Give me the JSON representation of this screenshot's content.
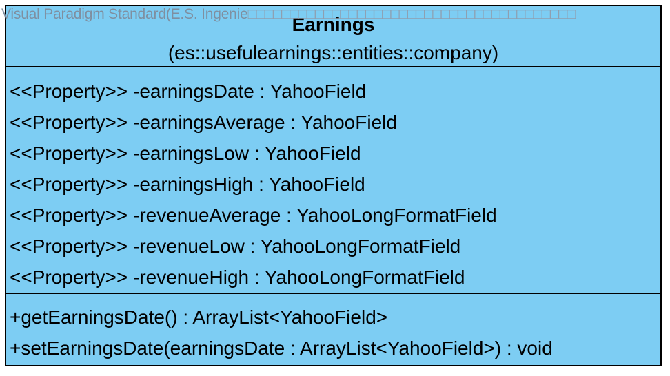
{
  "watermark": {
    "text": "Visual Paradigm Standard(E.S. Ingenie",
    "boxes": "□□□□□□□□□□□□□□□□□□□□□□□□□□□□□□□□□□□□□□□"
  },
  "class": {
    "name": "Earnings",
    "package": "(es::usefulearnings::entities::company)",
    "attributes": [
      "<<Property>> -earningsDate : YahooField",
      "<<Property>> -earningsAverage : YahooField",
      "<<Property>> -earningsLow : YahooField",
      "<<Property>> -earningsHigh : YahooField",
      "<<Property>> -revenueAverage : YahooLongFormatField",
      "<<Property>> -revenueLow : YahooLongFormatField",
      "<<Property>> -revenueHigh : YahooLongFormatField"
    ],
    "operations": [
      "+getEarningsDate() : ArrayList<YahooField>",
      "+setEarningsDate(earningsDate : ArrayList<YahooField>) : void"
    ]
  },
  "colors": {
    "class_fill": "#7dcdf3",
    "border": "#000000",
    "watermark": "#7f8fa0"
  }
}
